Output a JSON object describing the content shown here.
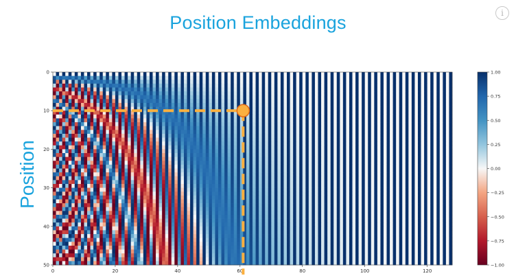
{
  "slide": {
    "title": "Position Embeddings",
    "ylabel": "Position",
    "info_icon": "info-icon"
  },
  "chart_data": {
    "type": "heatmap",
    "title": "Position Embeddings",
    "xlabel": "",
    "ylabel": "Position",
    "xlim": [
      0,
      128
    ],
    "ylim": [
      50,
      0
    ],
    "x_ticks": [
      "0",
      "20",
      "40",
      "60",
      "80",
      "100",
      "120"
    ],
    "y_ticks": [
      "0",
      "10",
      "20",
      "30",
      "40",
      "50"
    ],
    "colorbar_ticks": [
      "1.00",
      "0.75",
      "0.50",
      "0.25",
      "0.00",
      "−0.25",
      "−0.50",
      "−0.75",
      "−1.00"
    ],
    "colorbar_range": [
      -1.0,
      1.0
    ],
    "colormap": "RdBu",
    "colors": {
      "high": "#08306b",
      "mid": "#f7f7f7",
      "low": "#67001f"
    },
    "columns": 128,
    "rows": 50,
    "highlight": {
      "x": 61,
      "y": 10,
      "color": "#fbb040"
    },
    "grid": false
  }
}
